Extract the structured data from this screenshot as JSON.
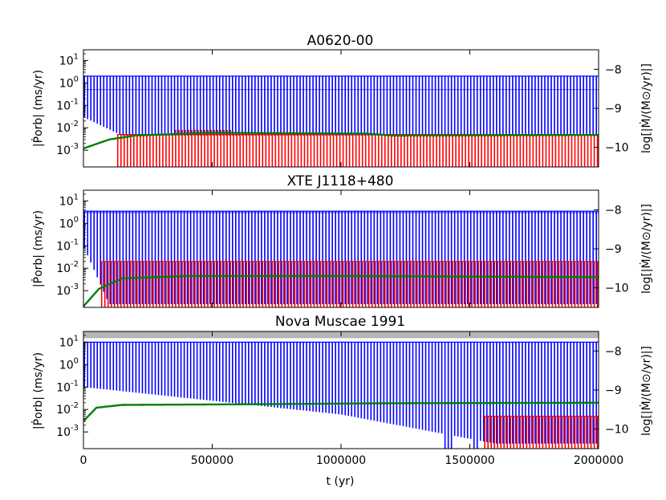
{
  "figure": {
    "xlabel": "t (yr)",
    "ylabel_left": "|Ṗorb| (ms/yr)",
    "ylabel_right": "log[|Ṁ/(M⊙/yr)|]"
  },
  "chart_data": [
    {
      "type": "line",
      "title": "A0620-00",
      "xlabel": "",
      "ylabel": "|Ṗorb| (ms/yr)",
      "ylabel_right": "log[|Ṁ/(M⊙/yr)|]",
      "xlim": [
        0,
        2000000
      ],
      "ylim_log": [
        0.00018,
        30
      ],
      "y_ticks": [
        "10^-3",
        "10^-2",
        "10^-1",
        "10^0",
        "10^1"
      ],
      "y2lim": [
        -10.5,
        -7.5
      ],
      "y2_ticks": [
        -10,
        -9,
        -8
      ],
      "x_ticks": [],
      "cycles": 160,
      "series": [
        {
          "role": "blue",
          "color": "#0000ff",
          "high": 2.0,
          "low_start": 0.03,
          "low_end": 0.0045,
          "low_settle_t": 150000,
          "start": 0.5
        },
        {
          "role": "red",
          "color": "#ff0000",
          "t_start": 130000,
          "high": 0.005,
          "bump": [
            [
              350000,
              0.008
            ],
            [
              580000,
              0.0065
            ]
          ],
          "low": 0.00018
        },
        {
          "role": "green",
          "color": "#008000",
          "points": [
            [
              0,
              0.0012
            ],
            [
              100000,
              0.003
            ],
            [
              200000,
              0.0045
            ],
            [
              500000,
              0.006
            ],
            [
              1100000,
              0.0055
            ],
            [
              1200000,
              0.0045
            ],
            [
              2000000,
              0.0048
            ]
          ]
        }
      ]
    },
    {
      "type": "line",
      "title": "XTE J1118+480",
      "xlabel": "",
      "ylabel": "|Ṗorb| (ms/yr)",
      "ylabel_right": "log[|Ṁ/(M⊙/yr)|]",
      "xlim": [
        0,
        2000000
      ],
      "ylim_log": [
        0.00018,
        30
      ],
      "y_ticks": [
        "10^-3",
        "10^-2",
        "10^-1",
        "10^0",
        "10^1"
      ],
      "y2lim": [
        -10.5,
        -7.5
      ],
      "y2_ticks": [
        -10,
        -9,
        -8
      ],
      "x_ticks": [],
      "cycles": 160,
      "series": [
        {
          "role": "blue",
          "color": "#0000ff",
          "high": 3.5,
          "low_start": 0.1,
          "low_end": 0.00025,
          "low_settle_t": 100000,
          "start": 3.0
        },
        {
          "role": "red",
          "color": "#ff0000",
          "t_start": 70000,
          "high": 0.02,
          "low": 0.0002
        },
        {
          "role": "green",
          "color": "#008000",
          "points": [
            [
              0,
              0.0002
            ],
            [
              60000,
              0.0012
            ],
            [
              150000,
              0.0035
            ],
            [
              400000,
              0.0045
            ],
            [
              1000000,
              0.0045
            ],
            [
              2000000,
              0.004
            ]
          ]
        }
      ]
    },
    {
      "type": "line",
      "title": "Nova Muscae 1991",
      "xlabel": "t (yr)",
      "ylabel": "|Ṗorb| (ms/yr)",
      "ylabel_right": "log[|Ṁ/(M⊙/yr)|]",
      "xlim": [
        0,
        2000000
      ],
      "ylim_log": [
        0.00018,
        30
      ],
      "y_ticks": [
        "10^-3",
        "10^-2",
        "10^-1",
        "10^0",
        "10^1"
      ],
      "y2lim": [
        -10.5,
        -7.5
      ],
      "y2_ticks": [
        -10,
        -9,
        -8
      ],
      "x_ticks": [
        "0",
        "500000",
        "1000000",
        "1500000",
        "2000000"
      ],
      "cycles": 160,
      "gray_band": [
        15,
        30
      ],
      "series": [
        {
          "role": "blue",
          "color": "#0000ff",
          "high": 10,
          "low_start": 0.1,
          "low_mid": 0.006,
          "low_end": 0.0003,
          "gaps": [
            [
              1400000,
              1430000
            ],
            [
              1510000,
              1530000
            ]
          ]
        },
        {
          "role": "red",
          "color": "#ff0000",
          "t_start": 1550000,
          "high": 0.005,
          "low": 0.00025
        },
        {
          "role": "green",
          "color": "#008000",
          "points": [
            [
              0,
              0.003
            ],
            [
              50000,
              0.012
            ],
            [
              150000,
              0.016
            ],
            [
              600000,
              0.017
            ],
            [
              1200000,
              0.019
            ],
            [
              2000000,
              0.02
            ]
          ]
        }
      ]
    }
  ]
}
